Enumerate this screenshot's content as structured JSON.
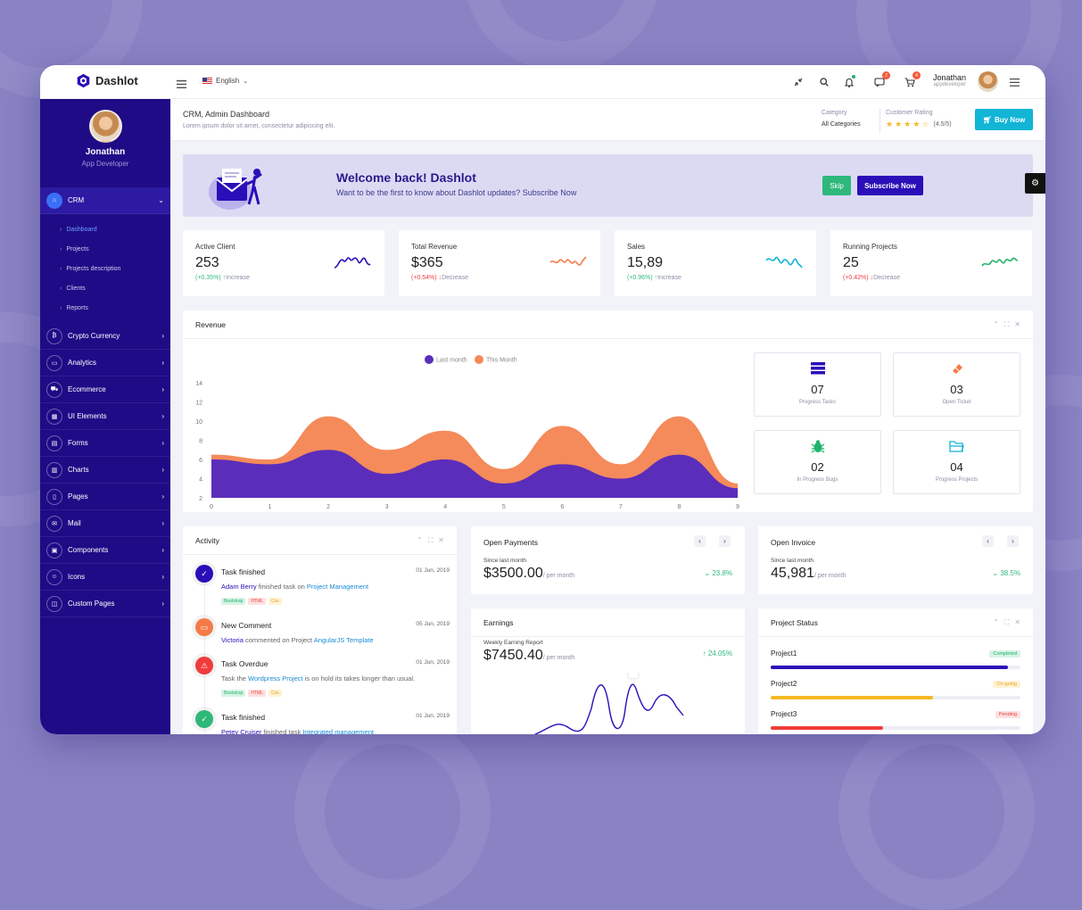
{
  "topbar": {
    "logo": "Dashlot",
    "language": "English",
    "messages_badge": "2",
    "cart_badge": "4",
    "user_name": "Jonathan",
    "user_role": "appdeveloper"
  },
  "sidebar": {
    "profile_name": "Jonathan",
    "profile_role": "App Developer",
    "crm_label": "CRM",
    "crm_sub": [
      "Dashboard",
      "Projects",
      "Projects description",
      "Clients",
      "Reports"
    ],
    "items": [
      {
        "label": "Crypto Currency",
        "icon": "bitcoin-icon"
      },
      {
        "label": "Analytics",
        "icon": "monitor-icon"
      },
      {
        "label": "Ecommerce",
        "icon": "cart-icon"
      },
      {
        "label": "UI Elements",
        "icon": "grid-icon"
      },
      {
        "label": "Forms",
        "icon": "form-icon"
      },
      {
        "label": "Charts",
        "icon": "chart-icon"
      },
      {
        "label": "Pages",
        "icon": "pages-icon"
      },
      {
        "label": "Mail",
        "icon": "mail-icon"
      },
      {
        "label": "Components",
        "icon": "components-icon"
      },
      {
        "label": "Icons",
        "icon": "smile-icon"
      },
      {
        "label": "Custom Pages",
        "icon": "custom-icon"
      }
    ]
  },
  "header": {
    "title": "CRM, Admin Dashboard",
    "subtitle": "Lorem ipsum dolor sit amet, consectetur adipiscing elit.",
    "category_label": "Category",
    "category_value": "All Categories",
    "rating_label": "Customer Rating",
    "rating_value": "(4.5/5)",
    "buy_label": "Buy Now"
  },
  "welcome": {
    "title": "Welcome back! Dashlot",
    "subtitle": "Want to be the first to know about Dashlot updates? Subscribe Now",
    "skip_label": "Skip",
    "subscribe_label": "Subscribe Now"
  },
  "stats": [
    {
      "title": "Active Client",
      "value": "253",
      "change": "(+0.35%)",
      "trend": "Increase",
      "color": "#2a0fb8"
    },
    {
      "title": "Total Revenue",
      "value": "$365",
      "change": "(+0.54%)",
      "trend": "Decrease",
      "color": "#f47b48"
    },
    {
      "title": "Sales",
      "value": "15,89",
      "change": "(+0.96%)",
      "trend": "Increase",
      "color": "#11b5d5"
    },
    {
      "title": "Running Projects",
      "value": "25",
      "change": "(+0.42%)",
      "trend": "Decrease",
      "color": "#21b26c"
    }
  ],
  "revenue": {
    "title": "Revenue",
    "tiles": [
      {
        "value": "07",
        "label": "Progress Tasks",
        "color": "#2a0fb8"
      },
      {
        "value": "03",
        "label": "Open Ticket",
        "color": "#f47b48"
      },
      {
        "value": "02",
        "label": "In Progress Bugs",
        "color": "#21b26c"
      },
      {
        "value": "04",
        "label": "Progress Projects",
        "color": "#11b5d5"
      }
    ]
  },
  "chart_data": {
    "type": "area",
    "x": [
      0,
      1,
      2,
      3,
      4,
      5,
      6,
      7,
      8,
      9
    ],
    "ylim": [
      2,
      14
    ],
    "yticks": [
      2,
      4,
      6,
      8,
      10,
      12,
      14
    ],
    "legend_placement": "top-center",
    "series": [
      {
        "name": "Last month",
        "color": "#5b2dbb",
        "values": [
          6,
          5.5,
          7,
          4.5,
          6,
          3.5,
          5.5,
          4,
          6.5,
          3
        ]
      },
      {
        "name": "This Month",
        "color": "#f58a5a",
        "values": [
          6.5,
          6,
          10.5,
          7,
          9,
          5,
          9.5,
          5.5,
          10.5,
          3.5
        ]
      }
    ]
  },
  "activity": {
    "title": "Activity",
    "items": [
      {
        "title": "Task finished",
        "date": "01 Jun, 2019",
        "user": "Adam Berry",
        "text": "finished task on",
        "link": "Project Management",
        "tags": [
          "Bootstrap",
          "HTML",
          "Css"
        ],
        "color": "#2a0fb8",
        "icon": "check-icon",
        "glyph": "✓"
      },
      {
        "title": "New Comment",
        "date": "05 Jun, 2019",
        "user": "Victoria",
        "text": "commented on Project",
        "link": "AngularJS Template",
        "tags": [],
        "color": "#f47b48",
        "icon": "comment-icon",
        "glyph": "▭"
      },
      {
        "title": "Task Overdue",
        "date": "01 Jun, 2019",
        "user": "",
        "text": "",
        "link": "Wordpress Project",
        "pre": "Task the",
        "post": "is on hold its takes longer than usual.",
        "tags": [
          "Bootstrap",
          "HTML",
          "Css"
        ],
        "color": "#f03c3c",
        "icon": "warning-icon",
        "glyph": "⚠"
      },
      {
        "title": "Task finished",
        "date": "01 Jun, 2019",
        "user": "Petey Cruiser",
        "text": "finished task",
        "link": "Integrated management",
        "tags": [],
        "color": "#2eb87a",
        "icon": "check-icon",
        "glyph": "✓"
      }
    ]
  },
  "payments": {
    "title": "Open Payments",
    "since": "Since last month",
    "amount": "$3500.00",
    "per": "/ per month",
    "pct": "23.8%"
  },
  "invoice": {
    "title": "Open Invoice",
    "since": "Since last month",
    "amount": "45,981",
    "per": "/ per month",
    "pct": "38.5%"
  },
  "earnings": {
    "title": "Earnings",
    "report": "Weekly Earning Report",
    "amount": "$7450.40",
    "per": "/ per month",
    "pct": "24.05%"
  },
  "projects": {
    "title": "Project Status",
    "items": [
      {
        "name": "Project1",
        "status": "Completed",
        "progress": 0.95,
        "color": "#2a0fb8",
        "badge_bg": "#d7f3e5",
        "badge_fg": "#21b26c"
      },
      {
        "name": "Project2",
        "status": "On-going",
        "progress": 0.65,
        "color": "#f5b826",
        "badge_bg": "#fff1d6",
        "badge_fg": "#e9a413"
      },
      {
        "name": "Project3",
        "status": "Pending",
        "progress": 0.45,
        "color": "#f03c3c",
        "badge_bg": "#fde0e0",
        "badge_fg": "#f03c3c"
      }
    ]
  }
}
